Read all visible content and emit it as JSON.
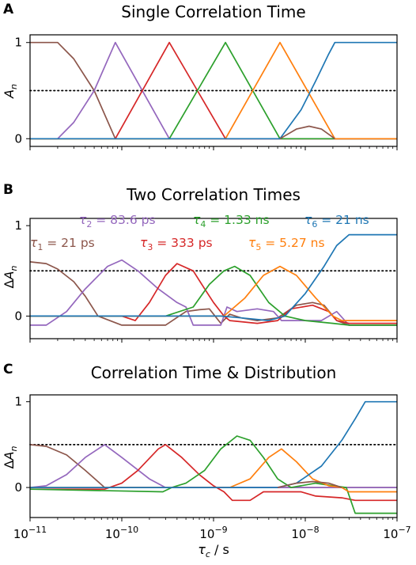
{
  "colors": {
    "tau1": "#8c564b",
    "tau2": "#9467bd",
    "tau3": "#d62728",
    "tau4": "#2ca02c",
    "tau5": "#ff7f0e",
    "tau6": "#1f77b4",
    "reference_line": "#000000"
  },
  "x_axis": {
    "label": "τc / s",
    "scale": "log",
    "range": [
      1e-11,
      1e-07
    ],
    "tick_labels": [
      "10−11",
      "10−10",
      "10−9",
      "10−8",
      "10−7"
    ]
  },
  "chart_data": [
    {
      "panel_letter": "A",
      "title": "Single Correlation Time",
      "type": "line",
      "ylabel": "An",
      "ylim": [
        -0.08,
        1.08
      ],
      "y_ticks": [
        0,
        1
      ],
      "reference_line": {
        "y": 0.5,
        "style": "dotted"
      },
      "series": [
        {
          "key": "tau1",
          "points": [
            [
              1e-11,
              1
            ],
            [
              2e-11,
              1
            ],
            [
              3e-11,
              0.83
            ],
            [
              5e-11,
              0.5
            ],
            [
              8.5e-11,
              0
            ],
            [
              1e-07,
              0
            ]
          ]
        },
        {
          "key": "tau2",
          "points": [
            [
              1e-11,
              0
            ],
            [
              2e-11,
              0
            ],
            [
              3e-11,
              0.17
            ],
            [
              5e-11,
              0.5
            ],
            [
              8.5e-11,
              1
            ],
            [
              3.3e-10,
              0
            ],
            [
              1e-07,
              0
            ]
          ]
        },
        {
          "key": "tau3",
          "points": [
            [
              1e-11,
              0
            ],
            [
              8.5e-11,
              0
            ],
            [
              3.3e-10,
              1
            ],
            [
              1.35e-09,
              0
            ],
            [
              1e-07,
              0
            ]
          ]
        },
        {
          "key": "tau4",
          "points": [
            [
              1e-11,
              0
            ],
            [
              3.3e-10,
              0
            ],
            [
              1.35e-09,
              1
            ],
            [
              5.3e-09,
              0
            ],
            [
              1e-07,
              0
            ]
          ]
        },
        {
          "key": "tau5",
          "points": [
            [
              1e-11,
              0
            ],
            [
              1.35e-09,
              0
            ],
            [
              5.3e-09,
              1
            ],
            [
              2.1e-08,
              0
            ],
            [
              1e-07,
              0
            ]
          ]
        },
        {
          "key": "tau6",
          "points": [
            [
              1e-11,
              0
            ],
            [
              5.3e-09,
              0
            ],
            [
              9e-09,
              0.3
            ],
            [
              1.3e-08,
              0.6
            ],
            [
              1.8e-08,
              0.88
            ],
            [
              2.1e-08,
              1
            ],
            [
              1e-07,
              1
            ]
          ]
        },
        {
          "key": "tau1",
          "points": [
            [
              5.3e-09,
              0
            ],
            [
              8e-09,
              0.1
            ],
            [
              1.1e-08,
              0.13
            ],
            [
              1.5e-08,
              0.1
            ],
            [
              2.1e-08,
              0
            ]
          ]
        }
      ]
    },
    {
      "panel_letter": "B",
      "title": "Two Correlation Times",
      "type": "line",
      "ylabel": "ΔAn",
      "ylim": [
        -0.25,
        1.08
      ],
      "y_ticks": [
        0,
        1
      ],
      "reference_line": {
        "y": 0.5,
        "style": "dotted"
      },
      "annotations": [
        {
          "key": "tau2",
          "text": "τ2 = 83.6 ps"
        },
        {
          "key": "tau4",
          "text": "τ4 = 1.33 ns"
        },
        {
          "key": "tau6",
          "text": "τ6 = 21 ns"
        },
        {
          "key": "tau1",
          "text": "τ1 = 21 ps"
        },
        {
          "key": "tau3",
          "text": "τ3 = 333 ps"
        },
        {
          "key": "tau5",
          "text": "τ5 = 5.27 ns"
        }
      ],
      "series": [
        {
          "key": "tau1",
          "points": [
            [
              1e-11,
              0.6
            ],
            [
              1.5e-11,
              0.58
            ],
            [
              2e-11,
              0.52
            ],
            [
              3e-11,
              0.38
            ],
            [
              4e-11,
              0.22
            ],
            [
              5.5e-11,
              0
            ],
            [
              1e-10,
              -0.1
            ],
            [
              3e-10,
              -0.1
            ],
            [
              5e-10,
              0.05
            ],
            [
              7e-10,
              0.07
            ],
            [
              9e-10,
              0.08
            ],
            [
              1.2e-09,
              -0.08
            ],
            [
              1.5e-09,
              0.02
            ],
            [
              2e-09,
              -0.02
            ],
            [
              3e-09,
              -0.05
            ],
            [
              5e-09,
              -0.02
            ],
            [
              8e-09,
              0.12
            ],
            [
              1.2e-08,
              0.15
            ],
            [
              1.6e-08,
              0.12
            ],
            [
              2.2e-08,
              -0.05
            ],
            [
              3e-08,
              -0.1
            ],
            [
              1e-07,
              -0.1
            ]
          ]
        },
        {
          "key": "tau2",
          "points": [
            [
              1e-11,
              -0.1
            ],
            [
              1.5e-11,
              -0.1
            ],
            [
              2.5e-11,
              0.05
            ],
            [
              4e-11,
              0.3
            ],
            [
              7e-11,
              0.55
            ],
            [
              1e-10,
              0.62
            ],
            [
              1.5e-10,
              0.5
            ],
            [
              2.5e-10,
              0.3
            ],
            [
              4e-10,
              0.15
            ],
            [
              5e-10,
              0.1
            ],
            [
              6e-10,
              -0.1
            ],
            [
              1.2e-09,
              -0.1
            ],
            [
              1.4e-09,
              0.1
            ],
            [
              1.8e-09,
              0.05
            ],
            [
              3e-09,
              0.08
            ],
            [
              4.5e-09,
              0.05
            ],
            [
              5.5e-09,
              -0.05
            ],
            [
              1.5e-08,
              -0.05
            ],
            [
              2.2e-08,
              0.05
            ],
            [
              3e-08,
              -0.1
            ],
            [
              1e-07,
              -0.1
            ]
          ]
        },
        {
          "key": "tau3",
          "points": [
            [
              1e-11,
              0
            ],
            [
              1e-10,
              0
            ],
            [
              1.4e-10,
              -0.05
            ],
            [
              2e-10,
              0.15
            ],
            [
              3e-10,
              0.45
            ],
            [
              4e-10,
              0.58
            ],
            [
              6e-10,
              0.5
            ],
            [
              8e-10,
              0.3
            ],
            [
              1e-09,
              0.15
            ],
            [
              1.3e-09,
              0
            ],
            [
              1.5e-09,
              -0.05
            ],
            [
              3e-09,
              -0.08
            ],
            [
              5e-09,
              -0.05
            ],
            [
              7e-09,
              0.08
            ],
            [
              1.2e-08,
              0.12
            ],
            [
              1.8e-08,
              0.05
            ],
            [
              2.2e-08,
              -0.05
            ],
            [
              3e-08,
              -0.08
            ],
            [
              1e-07,
              -0.08
            ]
          ]
        },
        {
          "key": "tau4",
          "points": [
            [
              1e-11,
              0
            ],
            [
              3e-10,
              0
            ],
            [
              6e-10,
              0.1
            ],
            [
              9e-10,
              0.35
            ],
            [
              1.3e-09,
              0.5
            ],
            [
              1.7e-09,
              0.55
            ],
            [
              2.5e-09,
              0.45
            ],
            [
              4e-09,
              0.15
            ],
            [
              6e-09,
              0
            ],
            [
              1e-08,
              -0.05
            ],
            [
              2e-08,
              -0.08
            ],
            [
              3e-08,
              -0.1
            ],
            [
              1e-07,
              -0.1
            ]
          ]
        },
        {
          "key": "tau5",
          "points": [
            [
              1e-11,
              0
            ],
            [
              1.3e-09,
              0
            ],
            [
              2.2e-09,
              0.2
            ],
            [
              3.5e-09,
              0.45
            ],
            [
              5.3e-09,
              0.55
            ],
            [
              8e-09,
              0.45
            ],
            [
              1.3e-08,
              0.2
            ],
            [
              2e-08,
              0
            ],
            [
              2.5e-08,
              -0.05
            ],
            [
              1e-07,
              -0.05
            ]
          ]
        },
        {
          "key": "tau6",
          "points": [
            [
              1e-11,
              0
            ],
            [
              1.2e-09,
              0
            ],
            [
              2e-09,
              -0.02
            ],
            [
              4e-09,
              -0.05
            ],
            [
              6e-09,
              0
            ],
            [
              1e-08,
              0.25
            ],
            [
              1.6e-08,
              0.55
            ],
            [
              2.2e-08,
              0.78
            ],
            [
              3e-08,
              0.9
            ],
            [
              1e-07,
              0.9
            ]
          ]
        }
      ]
    },
    {
      "panel_letter": "C",
      "title": "Correlation Time & Distribution",
      "type": "line",
      "ylabel": "ΔAn",
      "ylim": [
        -0.35,
        1.08
      ],
      "y_ticks": [
        0,
        1
      ],
      "reference_line": {
        "y": 0.5,
        "style": "dotted"
      },
      "series": [
        {
          "key": "tau1",
          "points": [
            [
              1e-11,
              0.5
            ],
            [
              1.5e-11,
              0.48
            ],
            [
              2.5e-11,
              0.38
            ],
            [
              4e-11,
              0.2
            ],
            [
              6.5e-11,
              0
            ],
            [
              1e-07,
              0
            ]
          ]
        },
        {
          "key": "tau2",
          "points": [
            [
              1e-11,
              0
            ],
            [
              1.5e-11,
              0.02
            ],
            [
              2.5e-11,
              0.15
            ],
            [
              4e-11,
              0.35
            ],
            [
              6.5e-11,
              0.5
            ],
            [
              1e-10,
              0.35
            ],
            [
              2e-10,
              0.1
            ],
            [
              3e-10,
              0
            ],
            [
              1e-07,
              0
            ]
          ]
        },
        {
          "key": "tau3",
          "points": [
            [
              1e-11,
              -0.02
            ],
            [
              6.5e-11,
              -0.02
            ],
            [
              1e-10,
              0.05
            ],
            [
              1.5e-10,
              0.2
            ],
            [
              2.5e-10,
              0.45
            ],
            [
              3e-10,
              0.5
            ],
            [
              4.5e-10,
              0.35
            ],
            [
              7e-10,
              0.15
            ],
            [
              1e-09,
              0.02
            ],
            [
              1.3e-09,
              -0.05
            ],
            [
              1.6e-09,
              -0.15
            ],
            [
              2.5e-09,
              -0.15
            ],
            [
              3.5e-09,
              -0.05
            ],
            [
              9e-09,
              -0.05
            ],
            [
              1.3e-08,
              -0.1
            ],
            [
              2.5e-08,
              -0.12
            ],
            [
              3.5e-08,
              -0.15
            ],
            [
              1e-07,
              -0.15
            ]
          ]
        },
        {
          "key": "tau4",
          "points": [
            [
              1e-11,
              -0.02
            ],
            [
              2.8e-10,
              -0.05
            ],
            [
              3.5e-10,
              0
            ],
            [
              5e-10,
              0.05
            ],
            [
              8e-10,
              0.2
            ],
            [
              1.2e-09,
              0.45
            ],
            [
              1.8e-09,
              0.6
            ],
            [
              2.5e-09,
              0.55
            ],
            [
              3.5e-09,
              0.35
            ],
            [
              5e-09,
              0.1
            ],
            [
              7e-09,
              0
            ],
            [
              1.3e-08,
              0.05
            ],
            [
              2e-08,
              0.02
            ],
            [
              2.8e-08,
              0
            ],
            [
              3.5e-08,
              -0.3
            ],
            [
              5e-08,
              -0.3
            ],
            [
              1e-07,
              -0.3
            ]
          ]
        },
        {
          "key": "tau5",
          "points": [
            [
              1e-11,
              0
            ],
            [
              1.5e-09,
              0
            ],
            [
              2.5e-09,
              0.1
            ],
            [
              4e-09,
              0.35
            ],
            [
              5.5e-09,
              0.45
            ],
            [
              8e-09,
              0.3
            ],
            [
              1.2e-08,
              0.1
            ],
            [
              1.8e-08,
              0.02
            ],
            [
              2.5e-08,
              0
            ],
            [
              3e-08,
              -0.05
            ],
            [
              1e-07,
              -0.05
            ]
          ]
        },
        {
          "key": "tau6",
          "points": [
            [
              1e-11,
              0
            ],
            [
              5e-09,
              0
            ],
            [
              8e-09,
              0.05
            ],
            [
              1.5e-08,
              0.25
            ],
            [
              2.5e-08,
              0.55
            ],
            [
              3.5e-08,
              0.8
            ],
            [
              4.5e-08,
              1
            ],
            [
              1e-07,
              1
            ]
          ]
        },
        {
          "key": "tau1",
          "points": [
            [
              5e-09,
              0
            ],
            [
              8e-09,
              0.05
            ],
            [
              1.2e-08,
              0.07
            ],
            [
              1.8e-08,
              0.05
            ],
            [
              2.5e-08,
              0
            ]
          ]
        }
      ]
    }
  ]
}
